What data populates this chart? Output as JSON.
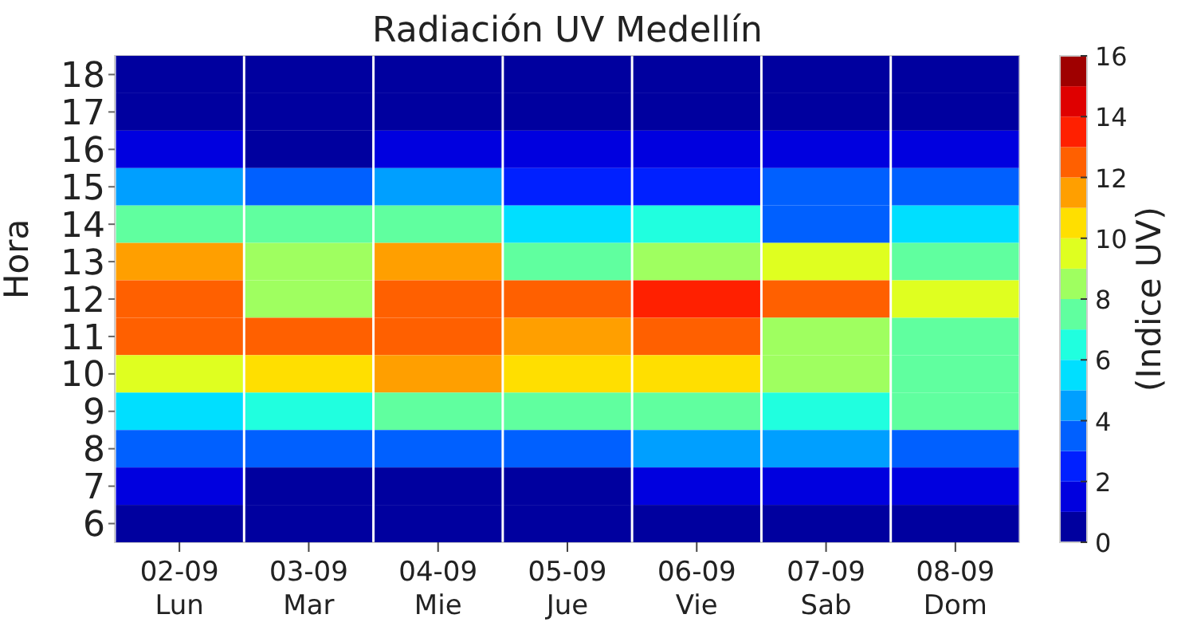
{
  "chart_data": {
    "type": "heatmap",
    "title": "Radiación UV Medellín",
    "ylabel": "Hora",
    "clabel": "(Indice UV)",
    "categories": [
      "02-09\nLun",
      "03-09\nMar",
      "04-09\nMie",
      "05-09\nJue",
      "06-09\nVie",
      "07-09\nSab",
      "08-09\nDom"
    ],
    "y_categories": [
      "18",
      "17",
      "16",
      "15",
      "14",
      "13",
      "12",
      "11",
      "10",
      "9",
      "8",
      "7",
      "6"
    ],
    "cells": [
      [
        0.5,
        0.5,
        0.5,
        0.5,
        0.5,
        0.5,
        0.5
      ],
      [
        0.5,
        0.5,
        0.5,
        0.5,
        0.5,
        0.5,
        0.5
      ],
      [
        1.5,
        0.5,
        1.5,
        1.5,
        1.5,
        1.5,
        1.5
      ],
      [
        4.5,
        3.5,
        4.5,
        2.5,
        2.5,
        3.5,
        3.5
      ],
      [
        7.5,
        7.5,
        7.5,
        5.5,
        6.5,
        3.5,
        5.5
      ],
      [
        11.5,
        8.5,
        11.5,
        7.5,
        8.5,
        9.5,
        7.5
      ],
      [
        12.5,
        8.5,
        12.5,
        12.5,
        13.5,
        12.5,
        9.5
      ],
      [
        12.5,
        12.5,
        12.5,
        11.5,
        12.5,
        8.5,
        7.5
      ],
      [
        9.5,
        10.5,
        11.5,
        10.5,
        10.5,
        8.5,
        7.5
      ],
      [
        5.5,
        6.5,
        7.5,
        7.5,
        7.5,
        6.5,
        7.5
      ],
      [
        3.5,
        3.5,
        3.5,
        3.5,
        4.5,
        4.5,
        3.5
      ],
      [
        1.5,
        0.5,
        0.5,
        0.5,
        1.5,
        1.5,
        1.5
      ],
      [
        0.5,
        0.5,
        0.5,
        0.5,
        0.5,
        0.5,
        0.5
      ]
    ],
    "clim": [
      0,
      16
    ],
    "cticks": [
      0,
      2,
      4,
      6,
      8,
      10,
      12,
      14,
      16
    ]
  }
}
